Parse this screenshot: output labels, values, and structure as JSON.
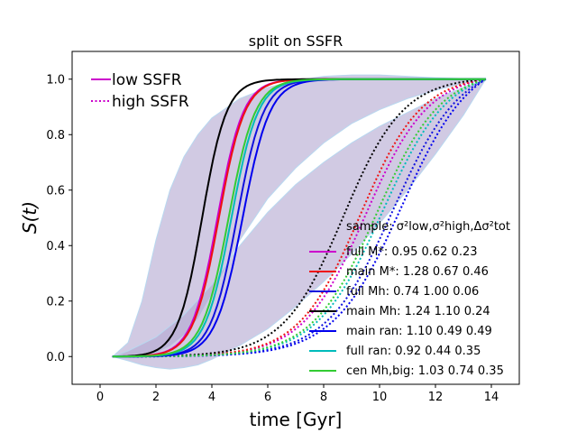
{
  "chart_data": {
    "type": "line",
    "title": "split on SSFR",
    "xlabel": "time [Gyr]",
    "ylabel": "S(t)",
    "xlim": [
      -1.0,
      15.0
    ],
    "ylim": [
      -0.1,
      1.1
    ],
    "xticks": [
      0,
      2,
      4,
      6,
      8,
      10,
      12,
      14
    ],
    "yticks": [
      0.0,
      0.2,
      0.4,
      0.6,
      0.8,
      1.0
    ],
    "style_legend": [
      {
        "label": "low SSFR",
        "dash": "solid",
        "color": "#cc00cc"
      },
      {
        "label": "high SSFR",
        "dash": "dotted",
        "color": "#cc00cc"
      }
    ],
    "legend_header": "sample: σ²low,σ²high,Δσ²tot",
    "series": [
      {
        "name": "full M*",
        "legend": "full M*: 0.95 0.62 0.23",
        "color": "#cc00cc",
        "low_x50": 4.2,
        "low_w": 1.85,
        "high_x50": 9.5,
        "high_w": 4.5
      },
      {
        "name": "main M*",
        "legend": "main M*: 1.28 0.67 0.46",
        "color": "#ee1111",
        "low_x50": 4.25,
        "low_w": 1.85,
        "high_x50": 9.3,
        "high_w": 4.4
      },
      {
        "name": "full Mh",
        "legend": "full Mh: 0.74 1.00 0.06",
        "color": "#1111dd",
        "low_x50": 4.9,
        "low_w": 1.9,
        "high_x50": 10.5,
        "high_w": 4.8
      },
      {
        "name": "main Mh",
        "legend": "main Mh: 1.24 1.10 0.24",
        "color": "#000000",
        "low_x50": 3.65,
        "low_w": 1.75,
        "high_x50": 8.7,
        "high_w": 4.3
      },
      {
        "name": "main ran",
        "legend": "main ran: 1.10 0.49 0.49",
        "color": "#0000ee",
        "low_x50": 5.1,
        "low_w": 1.95,
        "high_x50": 10.8,
        "high_w": 4.9
      },
      {
        "name": "full ran",
        "legend": "full ran: 0.92 0.44 0.35",
        "color": "#00bbbb",
        "low_x50": 4.7,
        "low_w": 1.9,
        "high_x50": 10.1,
        "high_w": 4.7
      },
      {
        "name": "cen Mh,big",
        "legend": "cen Mh,big: 1.03 0.74 0.35",
        "color": "#33cc33",
        "low_x50": 4.6,
        "low_w": 1.9,
        "high_x50": 9.9,
        "high_w": 4.6
      }
    ],
    "bands": [
      {
        "name": "low SSFR spread",
        "fill": "#b3a6d1",
        "upper": [
          [
            0.45,
            0.0
          ],
          [
            1.0,
            0.05
          ],
          [
            1.5,
            0.2
          ],
          [
            2.0,
            0.42
          ],
          [
            2.5,
            0.6
          ],
          [
            3.0,
            0.72
          ],
          [
            3.5,
            0.8
          ],
          [
            4.0,
            0.86
          ],
          [
            5.0,
            0.93
          ],
          [
            6.0,
            0.97
          ],
          [
            7.0,
            0.995
          ],
          [
            8.0,
            1.01
          ],
          [
            9.0,
            1.015
          ],
          [
            10.0,
            1.015
          ],
          [
            11.0,
            1.01
          ],
          [
            12.0,
            1.005
          ],
          [
            13.0,
            1.002
          ],
          [
            13.8,
            1.0
          ]
        ],
        "lower": [
          [
            0.45,
            0.0
          ],
          [
            1.0,
            0.0
          ],
          [
            1.5,
            0.005
          ],
          [
            2.0,
            0.015
          ],
          [
            2.5,
            0.04
          ],
          [
            3.0,
            0.08
          ],
          [
            3.5,
            0.14
          ],
          [
            4.0,
            0.23
          ],
          [
            5.0,
            0.42
          ],
          [
            6.0,
            0.57
          ],
          [
            7.0,
            0.68
          ],
          [
            8.0,
            0.77
          ],
          [
            9.0,
            0.84
          ],
          [
            10.0,
            0.89
          ],
          [
            11.0,
            0.93
          ],
          [
            12.0,
            0.96
          ],
          [
            13.0,
            0.985
          ],
          [
            13.8,
            1.0
          ]
        ]
      },
      {
        "name": "high SSFR spread",
        "fill": "#b3a6d1",
        "upper": [
          [
            0.45,
            0.0
          ],
          [
            1.0,
            0.02
          ],
          [
            2.0,
            0.07
          ],
          [
            3.0,
            0.15
          ],
          [
            4.0,
            0.26
          ],
          [
            5.0,
            0.4
          ],
          [
            6.0,
            0.52
          ],
          [
            7.0,
            0.62
          ],
          [
            8.0,
            0.7
          ],
          [
            9.0,
            0.77
          ],
          [
            10.0,
            0.83
          ],
          [
            11.0,
            0.88
          ],
          [
            12.0,
            0.93
          ],
          [
            13.0,
            0.97
          ],
          [
            13.8,
            1.0
          ]
        ],
        "lower": [
          [
            0.45,
            0.0
          ],
          [
            1.0,
            -0.015
          ],
          [
            1.5,
            -0.03
          ],
          [
            2.0,
            -0.04
          ],
          [
            2.5,
            -0.045
          ],
          [
            3.0,
            -0.04
          ],
          [
            3.5,
            -0.03
          ],
          [
            4.0,
            -0.01
          ],
          [
            5.0,
            0.04
          ],
          [
            6.0,
            0.1
          ],
          [
            7.0,
            0.18
          ],
          [
            8.0,
            0.27
          ],
          [
            9.0,
            0.37
          ],
          [
            10.0,
            0.48
          ],
          [
            11.0,
            0.6
          ],
          [
            12.0,
            0.73
          ],
          [
            13.0,
            0.87
          ],
          [
            13.8,
            1.0
          ]
        ]
      }
    ]
  }
}
